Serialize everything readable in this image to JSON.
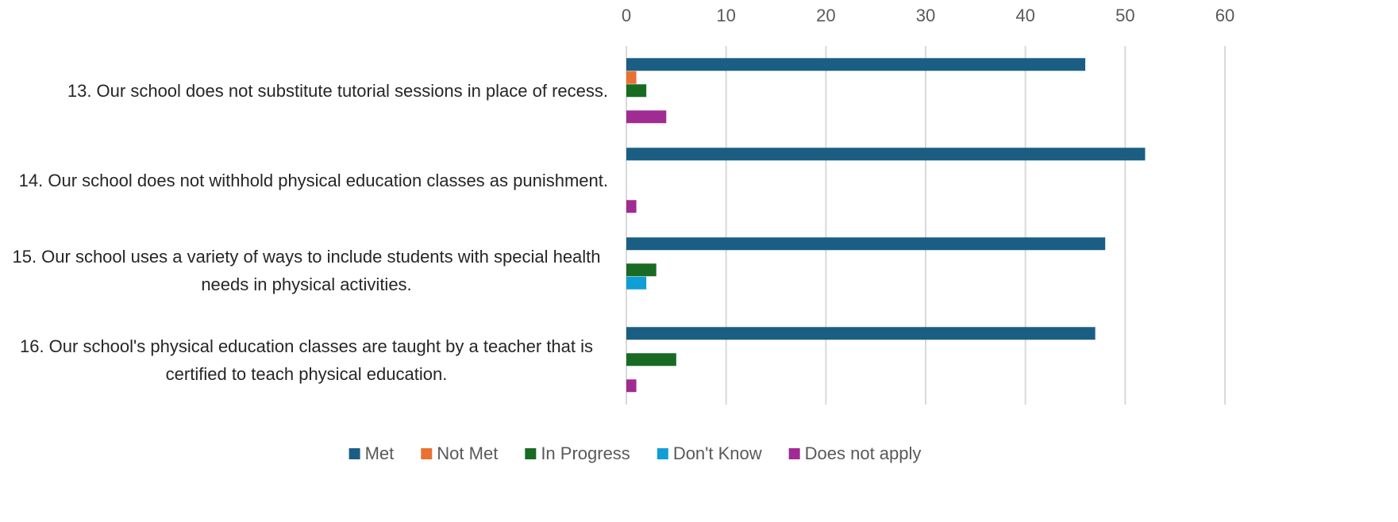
{
  "chart_data": {
    "type": "bar",
    "orientation": "horizontal",
    "categories": [
      "13. Our school does not substitute tutorial sessions in place of recess.",
      "14. Our school does not withhold physical education classes as punishment.",
      "15. Our school uses a variety of ways to include students with special health needs in physical activities.",
      "16. Our school's physical education classes are taught by a teacher that is certified to teach physical education."
    ],
    "series": [
      {
        "name": "Met",
        "color": "#1b5e84",
        "values": [
          46,
          52,
          48,
          47
        ]
      },
      {
        "name": "Not Met",
        "color": "#e97132",
        "values": [
          1,
          0,
          0,
          0
        ]
      },
      {
        "name": "In Progress",
        "color": "#196b24",
        "values": [
          2,
          0,
          3,
          5
        ]
      },
      {
        "name": "Don't Know",
        "color": "#0f9ed5",
        "values": [
          0,
          0,
          2,
          0
        ]
      },
      {
        "name": "Does not apply",
        "color": "#a02b93",
        "values": [
          4,
          1,
          0,
          1
        ]
      }
    ],
    "xlim": [
      0,
      60
    ],
    "xticks": [
      0,
      10,
      20,
      30,
      40,
      50,
      60
    ],
    "grid": true,
    "legend": "bottom"
  }
}
